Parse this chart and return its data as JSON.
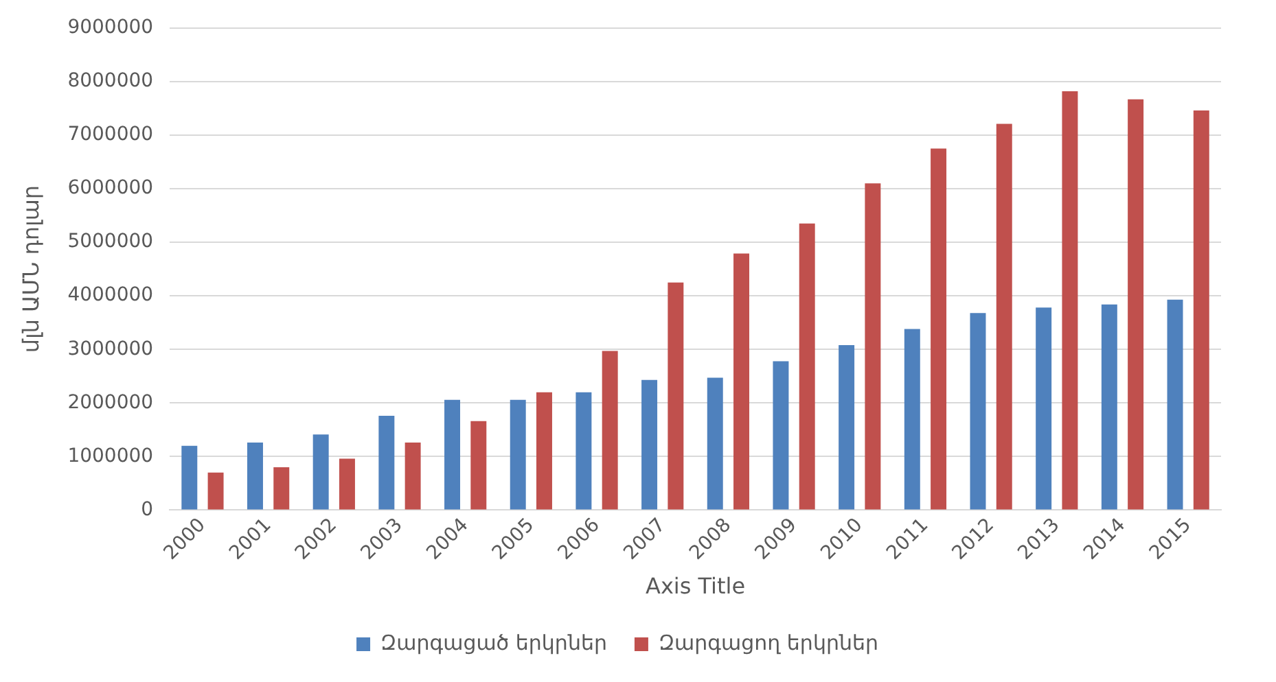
{
  "chart_data": {
    "type": "bar",
    "xlabel": "Axis Title",
    "ylabel": "մլն ԱՄՆ դոլար",
    "categories": [
      "2000",
      "2001",
      "2002",
      "2003",
      "2004",
      "2005",
      "2006",
      "2007",
      "2008",
      "2009",
      "2010",
      "2011",
      "2012",
      "2013",
      "2014",
      "2015"
    ],
    "series": [
      {
        "name": "Զարգացած երկրներ",
        "color": "#4f81bd",
        "values": [
          1200000,
          1260000,
          1410000,
          1760000,
          2060000,
          2060000,
          2200000,
          2430000,
          2470000,
          2780000,
          3080000,
          3380000,
          3680000,
          3780000,
          3840000,
          3930000
        ]
      },
      {
        "name": "Զարգացող երկրներ",
        "color": "#c0504d",
        "values": [
          700000,
          800000,
          960000,
          1260000,
          1660000,
          2200000,
          2970000,
          4250000,
          4790000,
          5350000,
          6100000,
          6750000,
          7210000,
          7820000,
          7670000,
          7460000
        ]
      }
    ],
    "ylim": [
      0,
      9000000
    ],
    "yticks": [
      0,
      1000000,
      2000000,
      3000000,
      4000000,
      5000000,
      6000000,
      7000000,
      8000000,
      9000000
    ],
    "grid": "y",
    "legend": "bottom"
  }
}
